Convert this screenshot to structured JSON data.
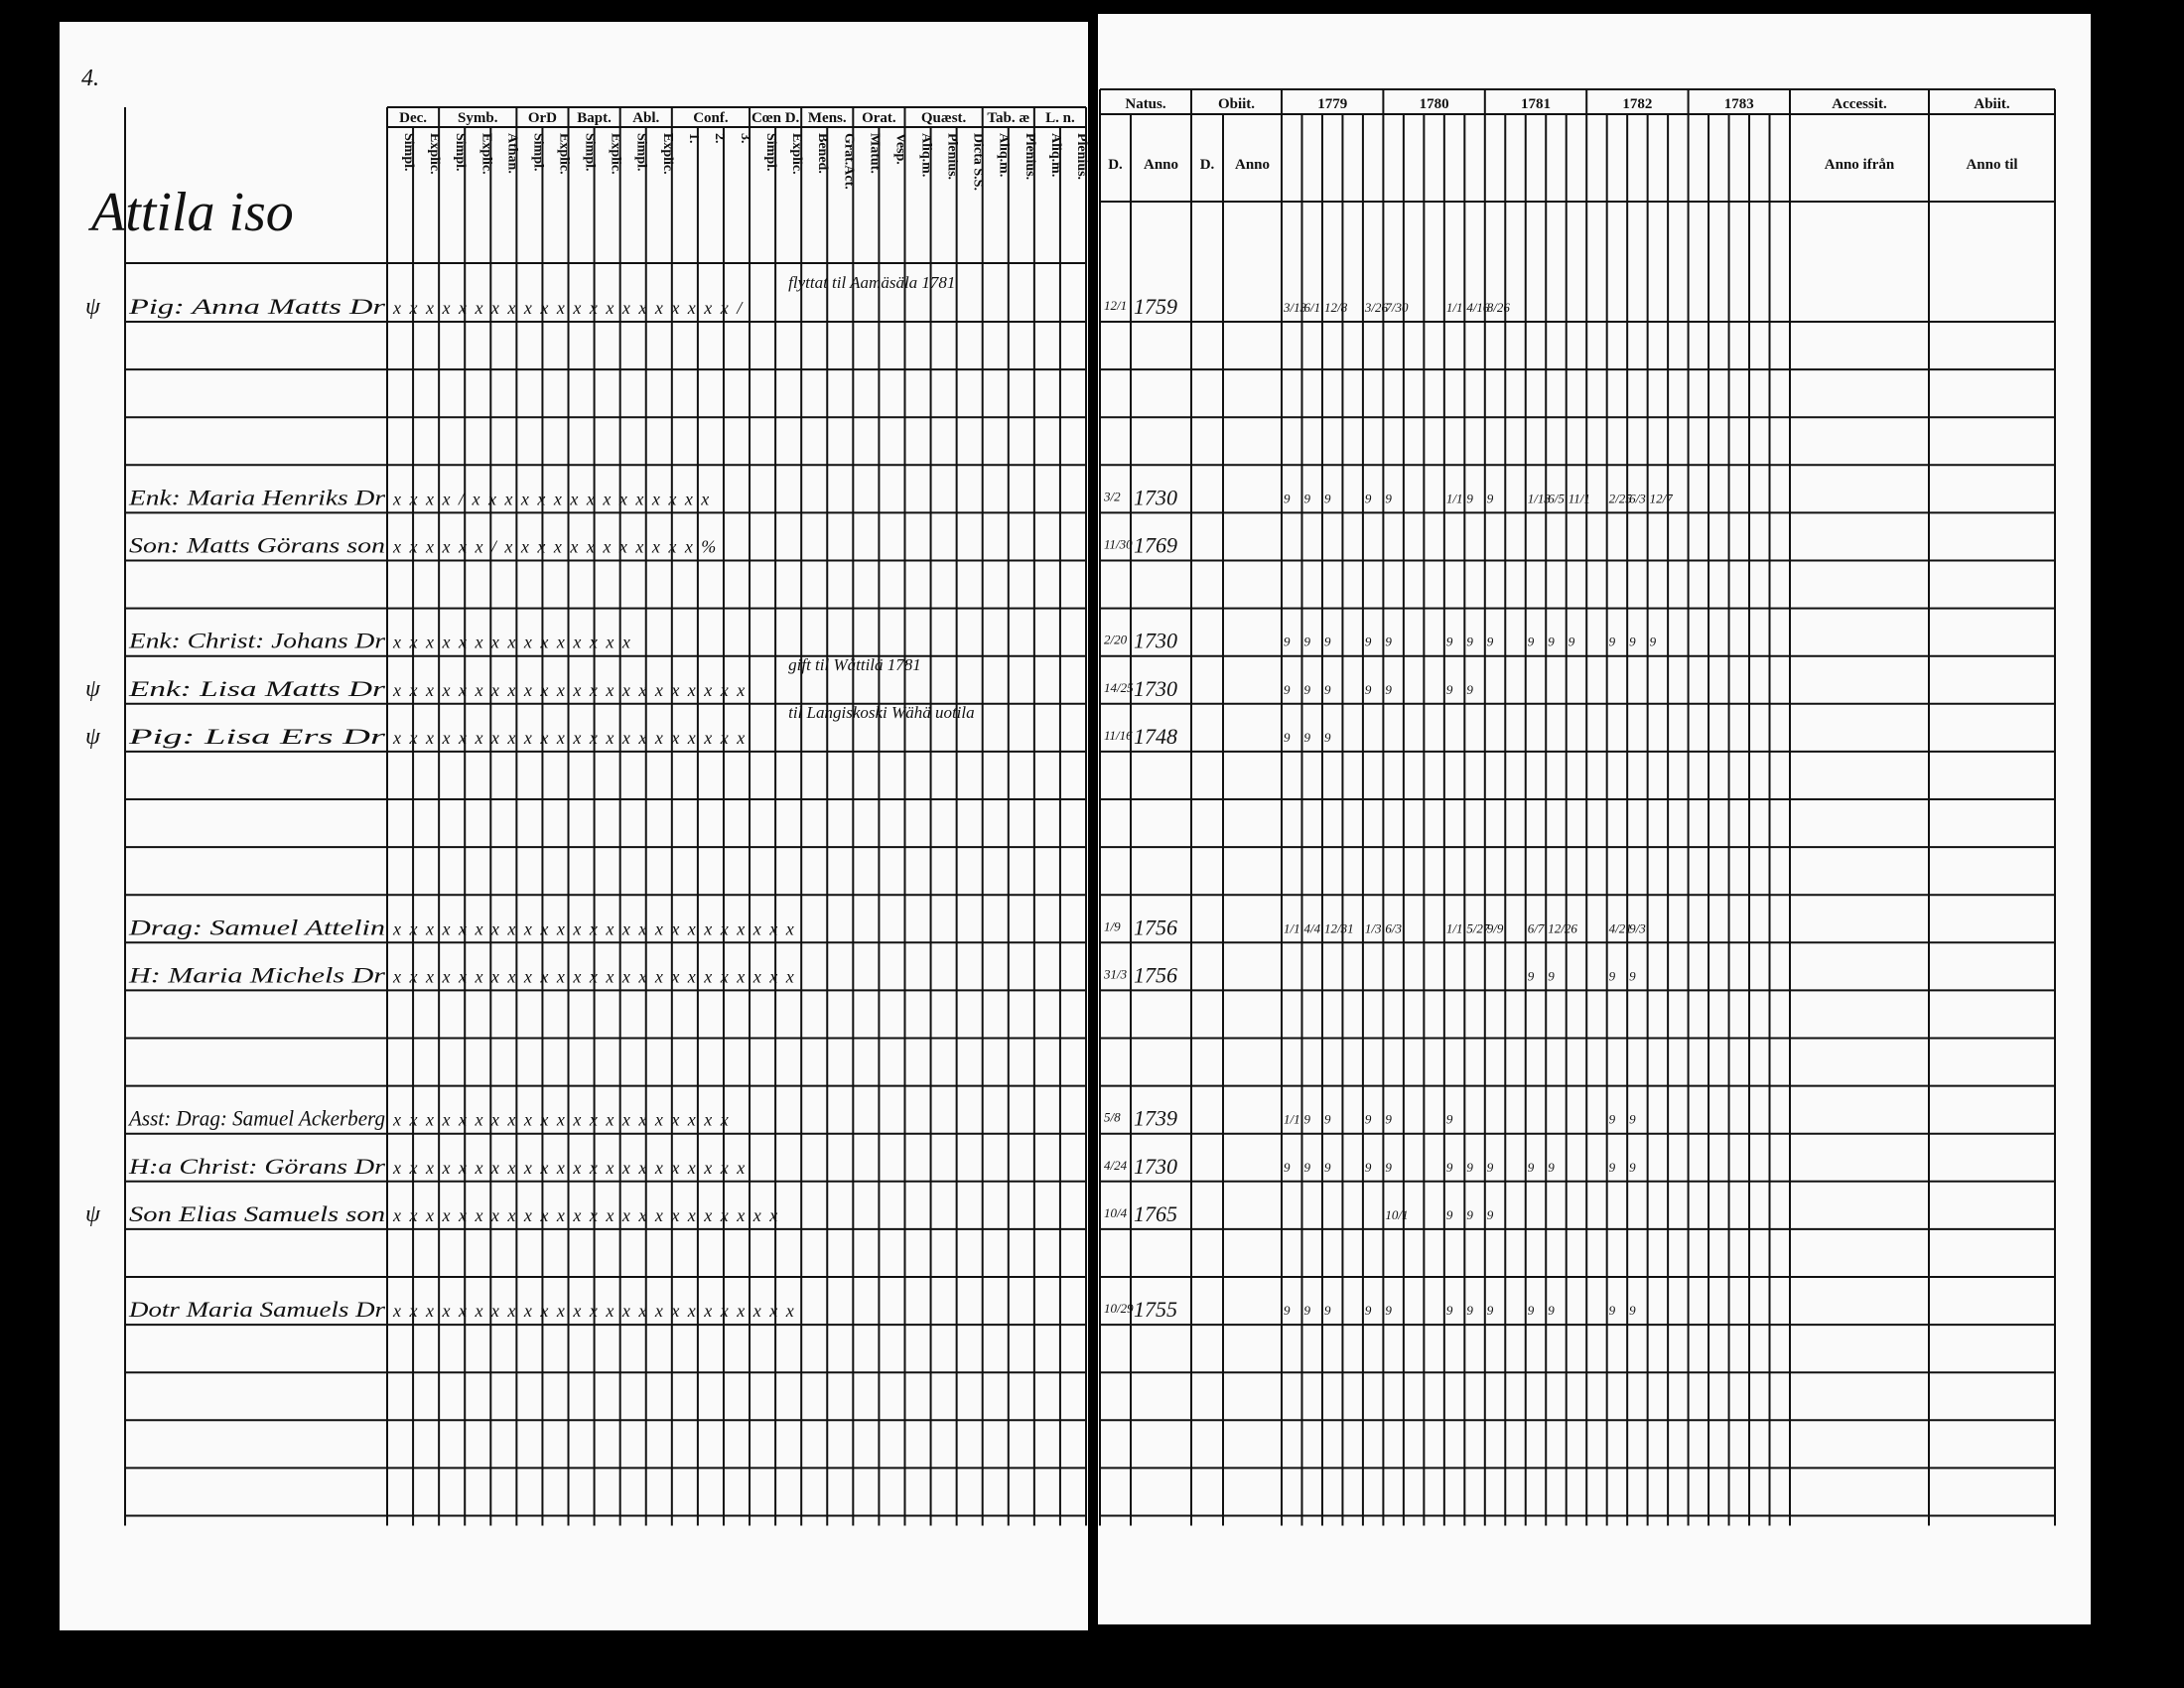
{
  "page_number": "4.",
  "village": "Attila iso",
  "left_headers": [
    {
      "label": "Dec.",
      "sub": [
        "Simpl.",
        "Explic."
      ]
    },
    {
      "label": "Symb.",
      "sub": [
        "Simpl.",
        "Explic.",
        "Athan."
      ]
    },
    {
      "label": "OrD",
      "sub": [
        "Simpl.",
        "Explic."
      ]
    },
    {
      "label": "Bapt.",
      "sub": [
        "Simpl.",
        "Explic."
      ]
    },
    {
      "label": "Abl.",
      "sub": [
        "Simpl.",
        "Explic."
      ]
    },
    {
      "label": "Conf.",
      "sub": [
        "1.",
        "2.",
        "3."
      ]
    },
    {
      "label": "Cœn D.",
      "sub": [
        "Simpl.",
        "Explic."
      ]
    },
    {
      "label": "Mens.",
      "sub": [
        "Bened.",
        "Grat.Act."
      ]
    },
    {
      "label": "Orat.",
      "sub": [
        "Matut.",
        "Vesp."
      ]
    },
    {
      "label": "Quæst.",
      "sub": [
        "Aliq.m.",
        "Plenius.",
        "Dicta S.S."
      ]
    },
    {
      "label": "Tab. æ",
      "sub": [
        "Aliq.m.",
        "Plenius."
      ]
    },
    {
      "label": "L. n.",
      "sub": [
        "Aliq.m.",
        "Plenius."
      ]
    }
  ],
  "right_headers": [
    {
      "label": "Natus.",
      "sub": [
        "D.",
        "Anno"
      ]
    },
    {
      "label": "Obiit.",
      "sub": [
        "D.",
        "Anno"
      ]
    },
    {
      "label": "1779",
      "sub": []
    },
    {
      "label": "1780",
      "sub": []
    },
    {
      "label": "1781",
      "sub": []
    },
    {
      "label": "1782",
      "sub": []
    },
    {
      "label": "1783",
      "sub": []
    },
    {
      "label": "Accessit.",
      "sub": [
        "Anno ifrån"
      ]
    },
    {
      "label": "Abiit.",
      "sub": [
        "Anno til"
      ]
    }
  ],
  "rows": [
    {
      "sign": "ψ",
      "name": "Pig: Anna Matts Dr",
      "marks": "x x  x x x x  x x  x x  x x  x x x  x x  x x  x x  /",
      "note": "flyttat til Aamäsäla 1781",
      "born_day": "12/1",
      "born_year": 1759,
      "exams": [
        "3/13",
        "6/1",
        "12/8",
        "",
        "3/26",
        "7/30",
        "",
        "",
        "1/1",
        "4/16",
        "8/26"
      ]
    },
    null,
    null,
    null,
    {
      "name": "Enk: Maria Henriks Dr",
      "marks": "x x  x x  /  x x  x x  x x  x x x  x x  x x  x x",
      "born_day": "3/2",
      "born_year": 1730,
      "exams": [
        "9",
        "9",
        "9",
        "",
        "9",
        "9",
        "",
        "",
        "1/1",
        "9",
        "9",
        "",
        "1/13",
        "6/5",
        "11/1",
        "",
        "2/25",
        "6/3",
        "12/7"
      ]
    },
    {
      "name": "Son: Matts Görans son",
      "marks": "x x  x x  x  x /  x x  x x  x x   x x  x x  x x  %",
      "born_day": "11/30",
      "born_year": 1769,
      "exams": []
    },
    null,
    {
      "name": "Enk: Christ: Johans Dr",
      "marks": "x x x  x      x x  x x  x x  x x x  x x",
      "born_day": "2/20",
      "born_year": 1730,
      "exams": [
        "9",
        "9",
        "9",
        "",
        "9",
        "9",
        "",
        "",
        "9",
        "9",
        "9",
        "",
        "9",
        "9",
        "9",
        "",
        "9",
        "9",
        "9"
      ]
    },
    {
      "sign": "ψ",
      "name": "Enk: Lisa Matts Dr",
      "marks": "x x x  x x x  x x x  x x  x x  x x x  x x  x x  x x",
      "note": "gift til Wåttilä 1781",
      "born_day": "14/25",
      "born_year": 1730,
      "exams": [
        "9",
        "9",
        "9",
        "",
        "9",
        "9",
        "",
        "",
        "9",
        "9"
      ]
    },
    {
      "sign": "ψ",
      "name": "Pig: Lisa Ers Dr",
      "marks": "x  x x x x x  x x x  x x  x x  x x x  x x  x x  x x",
      "note": "til Langiskoski Wähä uotila",
      "born_day": "11/16",
      "born_year": 1748,
      "exams": [
        "9",
        "9",
        "9"
      ]
    },
    null,
    null,
    null,
    {
      "name": "Drag: Samuel Attelin",
      "marks": "x x x x x x x x x x x x x x x x x x x x x x x x x",
      "born_day": "1/9",
      "born_year": 1756,
      "exams": [
        "1/1",
        "4/4",
        "12/31",
        "",
        "1/3",
        "6/3",
        "",
        "",
        "1/1",
        "5/27",
        "9/9",
        "",
        "6/7",
        "12/26",
        "",
        "",
        "4/21",
        "9/3"
      ]
    },
    {
      "name": "H: Maria Michels Dr",
      "marks": "x x x x x x x x x x x x x x x x x x x x x x x x x",
      "born_day": "31/3",
      "born_year": 1756,
      "exams": [
        "",
        "",
        "",
        "",
        "",
        "",
        "",
        "",
        "",
        "",
        "",
        "",
        "9",
        "9",
        "",
        "",
        "9",
        "9"
      ]
    },
    null,
    null,
    {
      "name": "Asst: Drag: Samuel Ackerberg",
      "marks": "x x x  x x x x x x x x x x x x x x x x x x",
      "born_day": "5/8",
      "born_year": 1739,
      "exams": [
        "1/1",
        "9",
        "9",
        "",
        "9",
        "9",
        "",
        "",
        "9",
        "",
        "",
        "",
        "",
        "",
        "",
        "",
        "9",
        "9"
      ]
    },
    {
      "name": "H:a Christ: Görans Dr",
      "marks": "x x x x x x x x x x x x x x x x x x x x x x",
      "born_day": "4/24",
      "born_year": 1730,
      "exams": [
        "9",
        "9",
        "9",
        "",
        "9",
        "9",
        "",
        "",
        "9",
        "9",
        "9",
        "",
        "9",
        "9",
        "",
        "",
        "9",
        "9"
      ]
    },
    {
      "sign": "ψ",
      "name": "Son Elias Samuels son",
      "marks": "x x x x x x x x x x x x x x x x x x x x x x x x",
      "born_day": "10/4",
      "born_year": 1765,
      "exams": [
        "",
        "",
        "",
        "",
        "",
        "10/1",
        "",
        "",
        "9",
        "9",
        "9"
      ]
    },
    null,
    {
      "name": "Dotr Maria Samuels Dr",
      "marks": "x x x x x x x x x x x x x x x x x x x x x x x x x",
      "born_day": "10/29",
      "born_year": 1755,
      "exams": [
        "9",
        "9",
        "9",
        "",
        "9",
        "9",
        "",
        "",
        "9",
        "9",
        "9",
        "",
        "9",
        "9",
        "",
        "",
        "9",
        "9"
      ]
    },
    null,
    null,
    null,
    null
  ]
}
